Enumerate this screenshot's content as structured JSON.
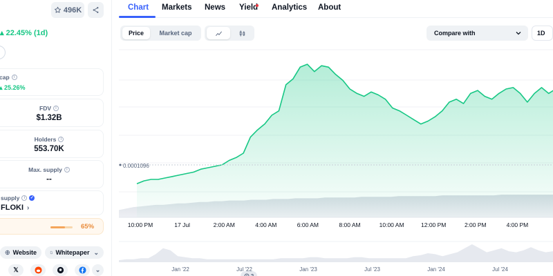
{
  "header": {
    "watchlist_count": "496K",
    "price_change": "22.45% (1d)"
  },
  "stats": {
    "market_cap": {
      "label": "cap",
      "change": "25.26%"
    },
    "fdv": {
      "label": "FDV",
      "value": "$1.32B"
    },
    "holders": {
      "label": "Holders",
      "value": "553.70K"
    },
    "max_supply": {
      "label": "Max. supply",
      "value": "--"
    },
    "circulating_supply": {
      "label": "supply",
      "value": "FLOKI",
      "percent_text": "65%",
      "percent_fraction": 0.65
    }
  },
  "links": {
    "website": "Website",
    "whitepaper": "Whitepaper",
    "socials": [
      "x-icon",
      "reddit-icon",
      "github-icon",
      "facebook-icon"
    ]
  },
  "tabs": [
    {
      "label": "Chart",
      "active": true
    },
    {
      "label": "Markets"
    },
    {
      "label": "News"
    },
    {
      "label": "Yield",
      "badge_dot": true
    },
    {
      "label": "Analytics"
    },
    {
      "label": "About"
    }
  ],
  "controls": {
    "type_options": [
      "Price",
      "Market cap"
    ],
    "type_selected": "Price",
    "compare_placeholder": "Compare with",
    "range": "1D",
    "zoom_count": "2"
  },
  "colors": {
    "accent": "#3861fb",
    "positive": "#16c784",
    "warning": "#ea8c3b",
    "text": "#0d1421",
    "muted": "#58667e"
  },
  "chart_data": {
    "type": "area",
    "ref_price_label": "0.0001096",
    "x_tick_labels": [
      "10:00 PM",
      "17 Jul",
      "2:00 AM",
      "4:00 AM",
      "6:00 AM",
      "8:00 AM",
      "10:00 AM",
      "12:00 PM",
      "2:00 PM",
      "4:00 PM",
      "6:00"
    ],
    "price_series": [
      [
        0,
        0.00011
      ],
      [
        1,
        0.000112
      ],
      [
        2,
        0.000113
      ],
      [
        3,
        0.000113
      ],
      [
        4,
        0.000114
      ],
      [
        5,
        0.000115
      ],
      [
        6,
        0.000116
      ],
      [
        7,
        0.000117
      ],
      [
        8,
        0.000118
      ],
      [
        9,
        0.00012
      ],
      [
        10,
        0.000121
      ],
      [
        11,
        0.000122
      ],
      [
        12,
        0.000123
      ],
      [
        13,
        0.000126
      ],
      [
        14,
        0.000128
      ],
      [
        15,
        0.000131
      ],
      [
        16,
        0.000142
      ],
      [
        17,
        0.000147
      ],
      [
        18,
        0.000151
      ],
      [
        19,
        0.000157
      ],
      [
        20,
        0.00016
      ],
      [
        21,
        0.000178
      ],
      [
        22,
        0.000182
      ],
      [
        23,
        0.00019
      ],
      [
        24,
        0.000192
      ],
      [
        25,
        0.000187
      ],
      [
        26,
        0.000191
      ],
      [
        27,
        0.00019
      ],
      [
        28,
        0.000185
      ],
      [
        29,
        0.000181
      ],
      [
        30,
        0.000175
      ],
      [
        31,
        0.000172
      ],
      [
        32,
        0.00017
      ],
      [
        33,
        0.000173
      ],
      [
        34,
        0.000171
      ],
      [
        35,
        0.000168
      ],
      [
        36,
        0.000162
      ],
      [
        37,
        0.00016
      ],
      [
        38,
        0.000157
      ],
      [
        39,
        0.000154
      ],
      [
        40,
        0.000151
      ],
      [
        41,
        0.000153
      ],
      [
        42,
        0.000156
      ],
      [
        43,
        0.00016
      ],
      [
        44,
        0.000166
      ],
      [
        45,
        0.000168
      ],
      [
        46,
        0.000165
      ],
      [
        47,
        0.000172
      ],
      [
        48,
        0.000174
      ],
      [
        49,
        0.00017
      ],
      [
        50,
        0.000168
      ],
      [
        51,
        0.000172
      ],
      [
        52,
        0.000175
      ],
      [
        53,
        0.000176
      ],
      [
        54,
        0.000172
      ],
      [
        55,
        0.000166
      ],
      [
        56,
        0.000172
      ],
      [
        57,
        0.000176
      ],
      [
        58,
        0.000172
      ],
      [
        59,
        0.000175
      ]
    ],
    "volume_series": [
      10,
      12,
      14,
      15,
      16,
      17,
      17,
      18,
      19,
      19,
      20,
      21,
      21,
      22,
      22,
      23,
      23,
      23,
      24,
      24,
      24,
      25,
      25,
      25,
      26,
      26,
      26,
      26,
      27,
      27,
      27,
      27,
      27,
      28,
      28,
      28,
      28,
      28,
      29,
      29,
      29,
      29,
      29,
      29,
      30,
      30,
      30,
      30,
      30,
      30,
      30,
      30,
      31,
      31,
      31,
      31,
      31,
      31,
      31,
      31
    ],
    "overview_tick_labels": [
      "Jan '22",
      "Jul '22",
      "Jan '23",
      "Jul '23",
      "Jan '24",
      "Jul '24"
    ],
    "overview_series": [
      2,
      3,
      3,
      4,
      4,
      8,
      14,
      12,
      6,
      5,
      4,
      4,
      3,
      3,
      3,
      3,
      3,
      3,
      3,
      3,
      3,
      3,
      4,
      4,
      4,
      4,
      5,
      5,
      4,
      4,
      4,
      4,
      5,
      5,
      4,
      4,
      4,
      4,
      4,
      4,
      6,
      7,
      9,
      8,
      6,
      8,
      10,
      14,
      18,
      14,
      10,
      12,
      14,
      11,
      10,
      12,
      15,
      12,
      10,
      11
    ]
  }
}
